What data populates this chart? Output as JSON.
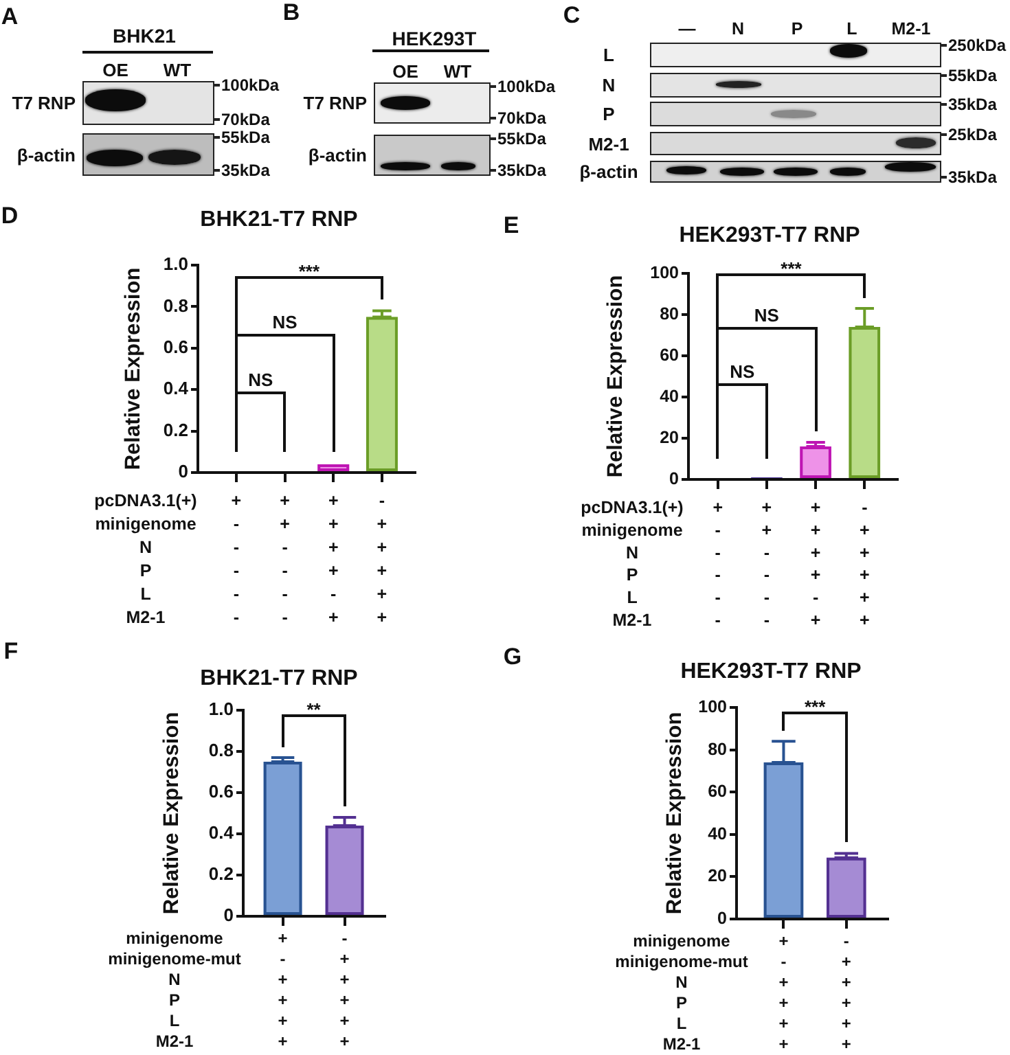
{
  "chart_data": [
    {
      "type": "other",
      "title": "BHK21",
      "categories": [
        "OE",
        "WT"
      ],
      "y_categories": [
        "T7 RNP",
        "β-actin"
      ],
      "annotations": [
        "A",
        "100kDa",
        "70kDa",
        "55kDa",
        "35kDa"
      ]
    },
    {
      "type": "other",
      "title": "HEK293T",
      "categories": [
        "OE",
        "WT"
      ],
      "y_categories": [
        "T7 RNP",
        "β-actin"
      ],
      "annotations": [
        "B",
        "100kDa",
        "70kDa",
        "55kDa",
        "35kDa"
      ]
    },
    {
      "type": "other",
      "categories": [
        "—",
        "N",
        "P",
        "L",
        "M2-1"
      ],
      "y_categories": [
        "L",
        "N",
        "P",
        "M2-1",
        "β-actin"
      ],
      "annotations": [
        "C",
        "250kDa",
        "55kDa",
        "35kDa",
        "25kDa",
        "35kDa"
      ]
    },
    {
      "type": "bar",
      "title": "BHK21-T7 RNP",
      "ylabel": "Relative Expression",
      "categories": [
        "+\n-\n-\n-\n-\n-",
        "+\n+\n-\n-\n-\n-",
        "+\n+\n+\n+\n-\n+",
        "-\n+\n+\n+\n+\n+"
      ],
      "values": [
        0,
        0,
        0.04,
        0.75
      ],
      "colors": [
        "#4a3399",
        "#4a3399",
        "#ee92e8",
        "#b8dc87"
      ],
      "errors": [
        null,
        null,
        null,
        [
          0.75,
          0.78
        ]
      ],
      "ylim": [
        0,
        1
      ],
      "yticks": [
        0,
        0.2,
        0.4,
        0.6,
        0.8,
        {
          "value": 1,
          "label": "1.0"
        }
      ],
      "annotations": [
        "D",
        "***",
        "NS",
        "NS",
        "pcDNA3.1(+)",
        "minigenome",
        "N",
        "P",
        "L",
        "M2-1"
      ]
    },
    {
      "type": "bar",
      "title": "HEK293T-T7 RNP",
      "ylabel": "Relative Expression",
      "categories": [
        "+\n-\n-\n-\n-\n-",
        "+\n+\n-\n-\n-\n-",
        "+\n+\n+\n+\n-\n+",
        "-\n+\n+\n+\n+\n+"
      ],
      "values": [
        0,
        1,
        16,
        74
      ],
      "colors": [
        "#4a3399",
        "#4a3399",
        "#ee92e8",
        "#b8dc87"
      ],
      "errors": [
        null,
        null,
        [
          16,
          18
        ],
        [
          74,
          83
        ]
      ],
      "ylim": [
        0,
        100
      ],
      "yticks": [
        0,
        20,
        40,
        60,
        80,
        100
      ],
      "annotations": [
        "E",
        "***",
        "NS",
        "NS",
        "pcDNA3.1(+)",
        "minigenome",
        "N",
        "P",
        "L",
        "M2-1"
      ]
    },
    {
      "type": "bar",
      "title": "BHK21-T7 RNP",
      "ylabel": "Relative Expression",
      "categories": [
        "+\n-\n+\n+\n+\n+",
        "-\n+\n+\n+\n+\n+"
      ],
      "values": [
        0.75,
        0.44
      ],
      "colors": [
        "#7b9fd5",
        "#a58bd4"
      ],
      "errors": [
        [
          0.75,
          0.77
        ],
        [
          0.44,
          0.48
        ]
      ],
      "ylim": [
        0,
        1
      ],
      "yticks": [
        0,
        0.2,
        0.4,
        0.6,
        0.8,
        {
          "value": 1,
          "label": "1.0"
        }
      ],
      "annotations": [
        "F",
        "**",
        "minigenome",
        "minigenome-mut",
        "N",
        "P",
        "L",
        "M2-1"
      ]
    },
    {
      "type": "bar",
      "title": "HEK293T-T7 RNP",
      "ylabel": "Relative Expression",
      "categories": [
        "+\n-\n+\n+\n+\n+",
        "-\n+\n+\n+\n+\n+"
      ],
      "values": [
        74,
        29
      ],
      "colors": [
        "#7b9fd5",
        "#a58bd4"
      ],
      "errors": [
        [
          74,
          84
        ],
        [
          29,
          31
        ]
      ],
      "ylim": [
        0,
        100
      ],
      "yticks": [
        0,
        20,
        40,
        60,
        80,
        100
      ],
      "annotations": [
        "G",
        "***",
        "minigenome",
        "minigenome-mut",
        "N",
        "P",
        "L",
        "M2-1"
      ]
    }
  ]
}
